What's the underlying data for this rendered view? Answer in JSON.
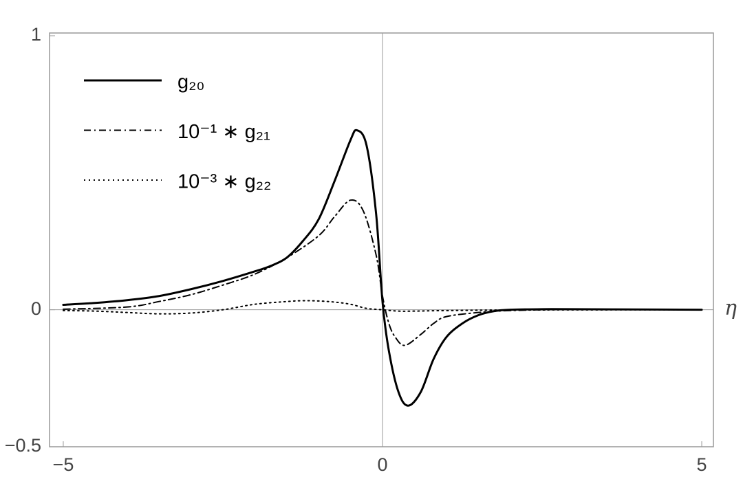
{
  "chart_data": {
    "type": "line",
    "axis_label_x": "η",
    "xlim": [
      -5.215,
      5.183
    ],
    "ylim": [
      -0.5,
      1.01
    ],
    "xticks": [
      {
        "value": -5,
        "label": "−5"
      },
      0,
      5
    ],
    "yticks": [
      {
        "value": -0.5,
        "label": "−0.5"
      },
      0,
      1
    ],
    "series": [
      {
        "name": "g₂₀",
        "color": "#000000",
        "dash": "solid",
        "x": [
          -5,
          -4.5,
          -4,
          -3.5,
          -3,
          -2.5,
          -2,
          -1.75,
          -1.5,
          -1.25,
          -1,
          -0.75,
          -0.5,
          -0.4,
          -0.25,
          -0.1,
          0,
          0.1,
          0.25,
          0.4,
          0.6,
          0.8,
          1,
          1.25,
          1.5,
          1.75,
          2,
          2.5,
          3,
          4,
          5
        ],
        "values": [
          0.018,
          0.025,
          0.035,
          0.05,
          0.075,
          0.105,
          0.14,
          0.16,
          0.19,
          0.25,
          0.33,
          0.47,
          0.62,
          0.655,
          0.6,
          0.35,
          0.03,
          -0.15,
          -0.3,
          -0.35,
          -0.3,
          -0.18,
          -0.1,
          -0.05,
          -0.02,
          -0.005,
          0,
          0.002,
          0.002,
          0.001,
          0
        ]
      },
      {
        "name": "10⁻¹ ∗ g₂₁",
        "color": "#000000",
        "dash": "dashdot",
        "x": [
          -5,
          -4,
          -3.5,
          -3,
          -2.5,
          -2,
          -1.5,
          -1,
          -0.75,
          -0.5,
          -0.3,
          -0.1,
          0,
          0.1,
          0.2,
          0.35,
          0.6,
          0.8,
          1,
          1.5,
          2,
          3,
          5
        ],
        "values": [
          0.002,
          0.01,
          0.03,
          0.055,
          0.09,
          0.13,
          0.19,
          0.27,
          0.34,
          0.4,
          0.36,
          0.2,
          0.05,
          -0.05,
          -0.1,
          -0.13,
          -0.09,
          -0.05,
          -0.025,
          -0.01,
          -0.003,
          0.001,
          0
        ]
      },
      {
        "name": "10⁻³ ∗ g₂₂",
        "color": "#000000",
        "dash": "dotted",
        "x": [
          -5,
          -4.5,
          -4,
          -3.5,
          -3,
          -2.5,
          -2,
          -1.5,
          -1.25,
          -1,
          -0.75,
          -0.5,
          -0.25,
          0,
          0.25,
          0.5,
          1,
          2,
          5
        ],
        "values": [
          -0.003,
          -0.005,
          -0.01,
          -0.015,
          -0.012,
          0,
          0.02,
          0.03,
          0.033,
          0.032,
          0.028,
          0.02,
          0.005,
          0,
          -0.005,
          -0.005,
          -0.003,
          -0.001,
          0
        ]
      }
    ]
  }
}
